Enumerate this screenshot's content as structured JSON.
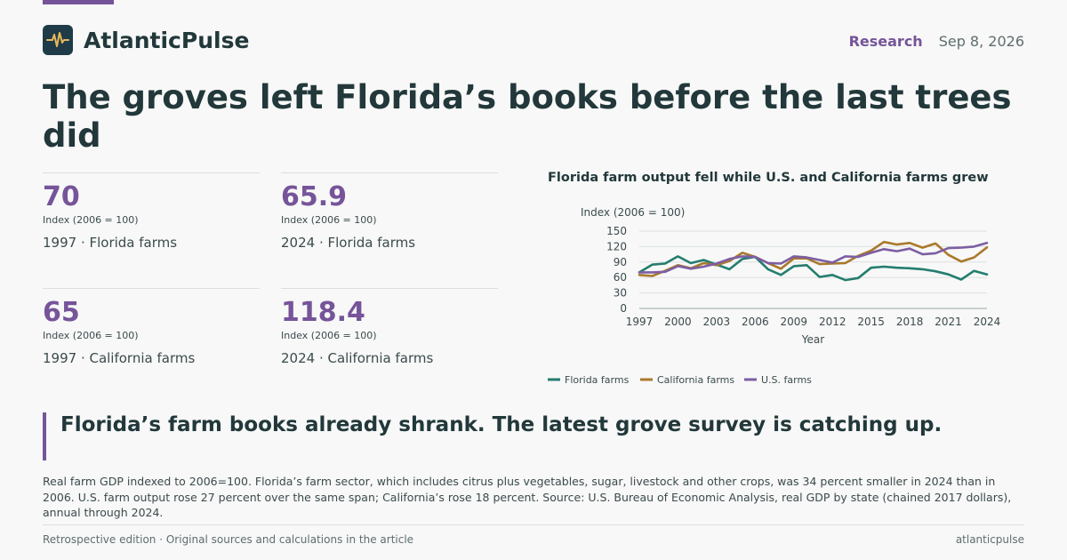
{
  "brand": {
    "name": "AtlanticPulse",
    "logo_icon": "pulse-icon",
    "accent": "#76549a"
  },
  "header": {
    "section": "Research",
    "date": "Sep 8, 2026"
  },
  "headline": "The groves left Florida’s books before the last trees did",
  "stats": [
    {
      "value": "70",
      "unit": "Index (2006 = 100)",
      "label": "1997 · Florida farms"
    },
    {
      "value": "65.9",
      "unit": "Index (2006 = 100)",
      "label": "2024 · Florida farms"
    },
    {
      "value": "65",
      "unit": "Index (2006 = 100)",
      "label": "1997 · California farms"
    },
    {
      "value": "118.4",
      "unit": "Index (2006 = 100)",
      "label": "2024 · California farms"
    }
  ],
  "chart_data": {
    "type": "line",
    "title": "Florida farm output fell while U.S. and California farms grew",
    "xlabel": "Year",
    "ylabel": "Index (2006 = 100)",
    "xlim": [
      1997,
      2024
    ],
    "ylim": [
      0,
      150
    ],
    "x_ticks": [
      1997,
      2000,
      2003,
      2006,
      2009,
      2012,
      2015,
      2018,
      2021,
      2024
    ],
    "y_ticks": [
      0,
      30,
      60,
      90,
      120,
      150
    ],
    "grid": true,
    "legend_position": "bottom-left",
    "x": [
      1997,
      1998,
      1999,
      2000,
      2001,
      2002,
      2003,
      2004,
      2005,
      2006,
      2007,
      2008,
      2009,
      2010,
      2011,
      2012,
      2013,
      2014,
      2015,
      2016,
      2017,
      2018,
      2019,
      2020,
      2021,
      2022,
      2023,
      2024
    ],
    "series": [
      {
        "name": "Florida farms",
        "color": "#247d6f",
        "values": [
          70,
          85,
          87,
          101,
          88,
          94,
          85,
          76,
          96,
          100,
          76,
          65,
          82,
          84,
          61,
          65,
          55,
          59,
          79,
          81,
          79,
          78,
          76,
          72,
          66,
          56,
          73,
          65.9
        ]
      },
      {
        "name": "California farms",
        "color": "#a9792c",
        "values": [
          65,
          63,
          73,
          84,
          78,
          88,
          84,
          92,
          108,
          100,
          88,
          77,
          97,
          97,
          86,
          87,
          88,
          102,
          112,
          129,
          124,
          127,
          118,
          126,
          104,
          91,
          99,
          118.4
        ]
      },
      {
        "name": "U.S. farms",
        "color": "#7d5ea4",
        "values": [
          70,
          70,
          71,
          82,
          77,
          81,
          87,
          96,
          101,
          100,
          88,
          87,
          101,
          99,
          94,
          89,
          101,
          100,
          108,
          115,
          111,
          116,
          105,
          107,
          117,
          118,
          120,
          127
        ]
      }
    ]
  },
  "pullquote": "Florida’s farm books already shrank. The latest grove survey is catching up.",
  "footnote": "Real farm GDP indexed to 2006=100. Florida’s farm sector, which includes citrus plus vegetables, sugar, livestock and other crops, was 34 percent smaller in 2024 than in 2006. U.S. farm output rose 27 percent over the same span; California’s rose 18 percent. Source: U.S. Bureau of Economic Analysis, real GDP by state (chained 2017 dollars), annual through 2024.",
  "footer": {
    "left": "Retrospective edition · Original sources and calculations in the article",
    "right": "atlanticpulse"
  }
}
